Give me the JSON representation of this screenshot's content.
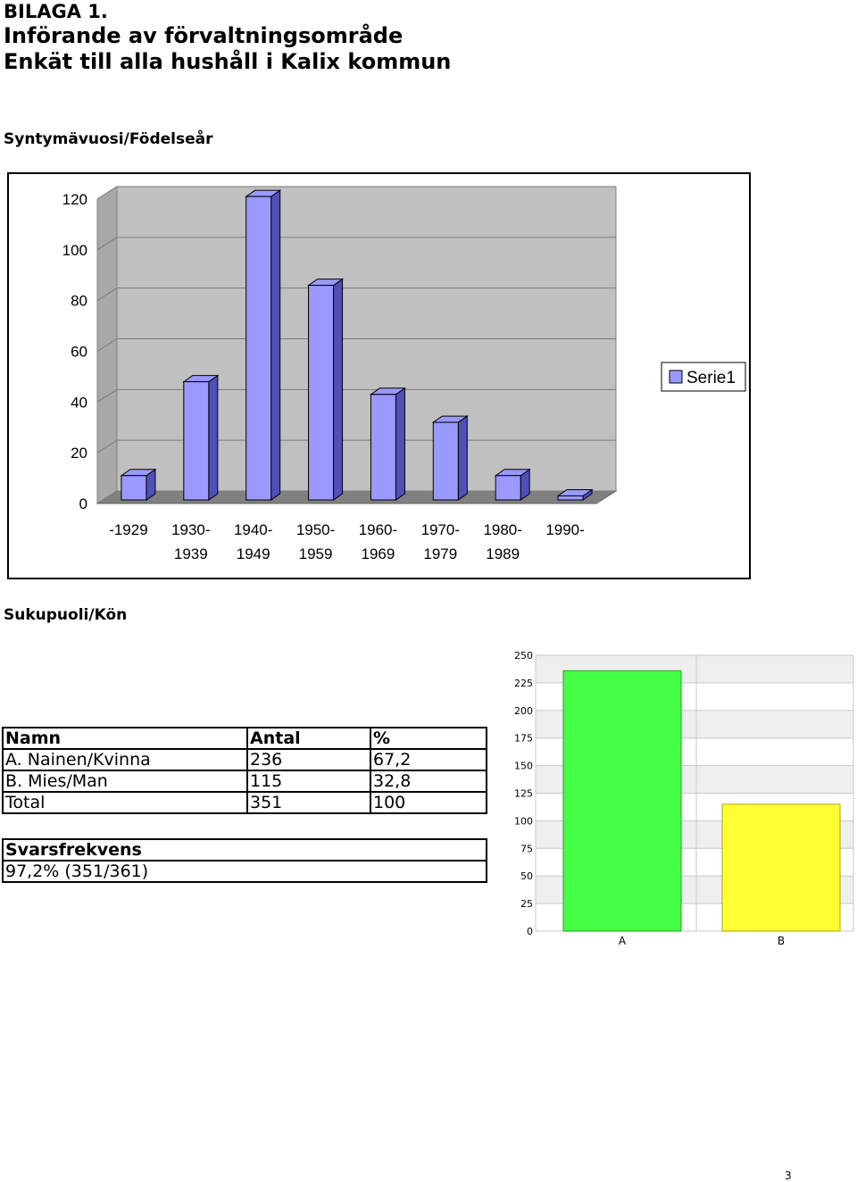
{
  "header": {
    "line1": "BILAGA 1.",
    "line2": "Införande av förvaltningsområde",
    "line3": "Enkät till alla hushåll i Kalix kommun"
  },
  "sections": {
    "birth_year": "Syntymävuosi/Födelseår",
    "gender": "Sukupuoli/Kön"
  },
  "colors": {
    "bar_face": "#9999ff",
    "bar_side": "#5050b8",
    "plot_wall": "#c0c0c0",
    "bar_a": "#44ff44",
    "bar_b": "#ffff33"
  },
  "chart_data": [
    {
      "type": "bar",
      "style": "3d",
      "categories": [
        "-1929",
        "1930-\n1939",
        "1940-\n1949",
        "1950-\n1959",
        "1960-\n1969",
        "1970-\n1979",
        "1980-\n1989",
        "1990-"
      ],
      "series": [
        {
          "name": "Serie1",
          "values": [
            11,
            48,
            121,
            86,
            43,
            32,
            11,
            3
          ]
        }
      ],
      "ylim": [
        0,
        120
      ],
      "yticks": [
        0,
        20,
        40,
        60,
        80,
        100,
        120
      ],
      "grid": true,
      "legend": "right"
    },
    {
      "type": "bar",
      "categories": [
        "A",
        "B"
      ],
      "values": [
        236,
        115
      ],
      "ylim": [
        0,
        250
      ],
      "yticks": [
        0,
        25,
        50,
        75,
        100,
        125,
        150,
        175,
        200,
        225,
        250
      ],
      "grid": true
    }
  ],
  "table_gender": {
    "headers": [
      "Namn",
      "Antal",
      "%"
    ],
    "rows": [
      [
        "A. Nainen/Kvinna",
        "236",
        "67,2"
      ],
      [
        "B. Mies/Man",
        "115",
        "32,8"
      ],
      [
        "Total",
        "351",
        "100"
      ]
    ]
  },
  "table_response": {
    "header": "Svarsfrekvens",
    "value": "97,2% (351/361)"
  },
  "page_number": "3"
}
